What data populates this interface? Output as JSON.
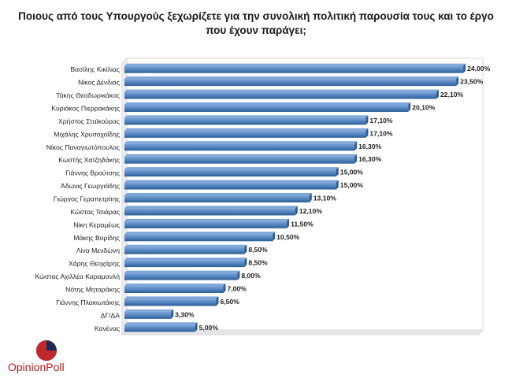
{
  "title": "Ποιους από τους Υπουργούς  ξεχωρίζετε για την συνολική πολιτική παρουσία τους και το έργο που έχουν παράγει;",
  "logo": {
    "text": "OpinionPoll",
    "icon": "opinionpoll-logo-icon",
    "colors": {
      "red": "#c0282a",
      "navy": "#1f2a5a",
      "text": "#b81a1a"
    }
  },
  "colors": {
    "bar": "#4f81bd",
    "bar_top": "#7fa6d8",
    "bar_dark": "#2e5d93",
    "frame": "#d9d9d9"
  },
  "chart_data": {
    "type": "bar",
    "orientation": "horizontal",
    "title": "Ποιους από τους Υπουργούς  ξεχωρίζετε για την συνολική πολιτική παρουσία τους και το έργο που έχουν παράγει;",
    "categories": [
      "Βασίλης Κικίλιας",
      "Νίκος Δένδιας",
      "Τάκης Θεοδωρικάκος",
      "Κυριάκος Πιερρακάκης",
      "Χρήστος Σταϊκούρας",
      "Μιχάλης Χρυσοχοΐδης",
      "Νίκος Παναγιωτόπουλος",
      "Κωστής Χατζηδάκης",
      "Γιάννης Βρούτσης",
      "Άδωνις Γεωργιάδης",
      "Γιώργος Γεραπετρίτης",
      "Κώστας Τσιάρας",
      "Νίκη Κεραμέως",
      "Μάκης Βορίδης",
      "Λίνα Μενδώνη",
      "Χάρης Θεοχάρης",
      "Κώστας Αχιλλέα Καραμανλή",
      "Νότης Μηταράκης",
      "Γιάννης Πλακιωτάκης",
      "ΔΓ/ΔΑ",
      "Κανένας"
    ],
    "values": [
      24.0,
      23.5,
      22.1,
      20.1,
      17.1,
      17.1,
      16.3,
      16.3,
      15.0,
      15.0,
      13.1,
      12.1,
      11.5,
      10.5,
      8.5,
      8.5,
      8.0,
      7.0,
      6.5,
      3.3,
      5.0
    ],
    "value_labels": [
      "24,00%",
      "23,50%",
      "22,10%",
      "20,10%",
      "17,10%",
      "17,10%",
      "16,30%",
      "16,30%",
      "15,00%",
      "15,00%",
      "13,10%",
      "12,10%",
      "11,50%",
      "10,50%",
      "8,50%",
      "8,50%",
      "8,00%",
      "7,00%",
      "6,50%",
      "3,30%",
      "5,00%"
    ],
    "xlim": [
      0,
      25
    ],
    "grid": false,
    "legend": "none"
  }
}
